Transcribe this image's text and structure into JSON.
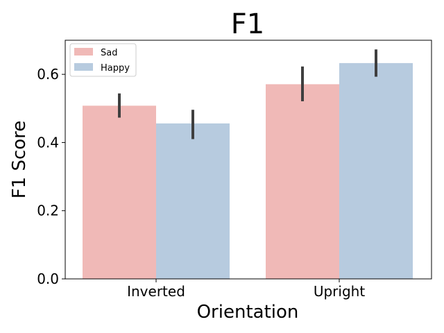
{
  "chart_data": {
    "type": "bar",
    "title": "F1",
    "xlabel": "Orientation",
    "ylabel": "F1 Score",
    "categories": [
      "Inverted",
      "Upright"
    ],
    "ylim": [
      0,
      0.7
    ],
    "yticks": [
      "0.0",
      "0.2",
      "0.4",
      "0.6"
    ],
    "ytick_values": [
      0.0,
      0.2,
      0.4,
      0.6
    ],
    "grid": false,
    "legend_position": "top-left",
    "series": [
      {
        "name": "Sad",
        "color": "#f0b9b7",
        "values": [
          0.508,
          0.571
        ],
        "error_low": [
          0.473,
          0.521
        ],
        "error_high": [
          0.544,
          0.623
        ]
      },
      {
        "name": "Happy",
        "color": "#b7cbdf",
        "values": [
          0.456,
          0.633
        ],
        "error_low": [
          0.41,
          0.593
        ],
        "error_high": [
          0.496,
          0.673
        ]
      }
    ],
    "error_bar_color": "#3f3f3f"
  }
}
